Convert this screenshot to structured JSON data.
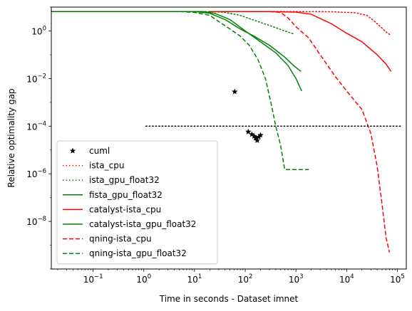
{
  "chart_data": {
    "type": "line",
    "title": "",
    "xlabel": "Time in seconds - Dataset imnet",
    "ylabel": "Relative optimality gap",
    "xscale": "log",
    "yscale": "log",
    "xlim": [
      0.015,
      150000
    ],
    "ylim": [
      1e-10,
      10
    ],
    "x_ticks": [
      {
        "value": 0.1,
        "base": "10",
        "exp": "−1"
      },
      {
        "value": 1,
        "base": "10",
        "exp": "0"
      },
      {
        "value": 10,
        "base": "10",
        "exp": "1"
      },
      {
        "value": 100,
        "base": "10",
        "exp": "2"
      },
      {
        "value": 1000,
        "base": "10",
        "exp": "3"
      },
      {
        "value": 10000,
        "base": "10",
        "exp": "4"
      },
      {
        "value": 100000,
        "base": "10",
        "exp": "5"
      }
    ],
    "y_ticks": [
      {
        "value": 1e-08,
        "base": "10",
        "exp": "−8"
      },
      {
        "value": 1e-06,
        "base": "10",
        "exp": "−6"
      },
      {
        "value": 0.0001,
        "base": "10",
        "exp": "−4"
      },
      {
        "value": 0.01,
        "base": "10",
        "exp": "−2"
      },
      {
        "value": 1,
        "base": "10",
        "exp": "0"
      }
    ],
    "legend_position": "lower-left",
    "grid": false,
    "series": [
      {
        "name": "cuml",
        "color": "#000000",
        "style": "marker-star",
        "points": [
          [
            62,
            0.0028
          ],
          [
            115,
            5.8e-05
          ],
          [
            135,
            4.5e-05
          ],
          [
            150,
            3.8e-05
          ],
          [
            160,
            3.2e-05
          ],
          [
            172,
            2.5e-05
          ],
          [
            185,
            3.5e-05
          ],
          [
            200,
            4.2e-05
          ]
        ]
      },
      {
        "name": "ista_cpu",
        "color": "#ff0000",
        "style": "dotted",
        "points": [
          [
            20,
            6.5
          ],
          [
            1000,
            6.5
          ],
          [
            5000,
            6.4
          ],
          [
            15000,
            5.8
          ],
          [
            25000,
            4.5
          ],
          [
            35000,
            2.6
          ],
          [
            45000,
            1.6
          ],
          [
            60000,
            0.9
          ],
          [
            75000,
            0.65
          ]
        ]
      },
      {
        "name": "ista_gpu_float32",
        "color": "#008000",
        "style": "dotted",
        "points": [
          [
            0.015,
            6.5
          ],
          [
            20,
            6.5
          ],
          [
            40,
            6.0
          ],
          [
            80,
            4.5
          ],
          [
            150,
            2.8
          ],
          [
            300,
            1.7
          ],
          [
            600,
            1.0
          ],
          [
            900,
            0.75
          ]
        ]
      },
      {
        "name": "fista_gpu_float32",
        "color": "#008000",
        "style": "solid",
        "points": [
          [
            0.015,
            6.5
          ],
          [
            15,
            6.5
          ],
          [
            25,
            5.5
          ],
          [
            50,
            3.0
          ],
          [
            100,
            1.0
          ],
          [
            200,
            0.35
          ],
          [
            400,
            0.12
          ],
          [
            700,
            0.035
          ],
          [
            1000,
            0.01
          ],
          [
            1300,
            0.003
          ]
        ]
      },
      {
        "name": "catalyst-ista_cpu",
        "color": "#ff0000",
        "style": "solid",
        "points": [
          [
            20,
            6.5
          ],
          [
            300,
            6.5
          ],
          [
            1000,
            6.2
          ],
          [
            2000,
            5.0
          ],
          [
            5000,
            2.0
          ],
          [
            10000,
            0.8
          ],
          [
            20000,
            0.35
          ],
          [
            40000,
            0.1
          ],
          [
            60000,
            0.04
          ],
          [
            75000,
            0.02
          ]
        ]
      },
      {
        "name": "catalyst-ista_gpu_float32",
        "color": "#008000",
        "style": "solid",
        "points": [
          [
            0.015,
            6.5
          ],
          [
            10,
            6.5
          ],
          [
            20,
            5.5
          ],
          [
            40,
            3.0
          ],
          [
            80,
            1.2
          ],
          [
            150,
            0.6
          ],
          [
            300,
            0.25
          ],
          [
            600,
            0.08
          ],
          [
            900,
            0.035
          ],
          [
            1250,
            0.02
          ]
        ]
      },
      {
        "name": "qning-ista_cpu",
        "color": "#ff0000",
        "style": "dashed",
        "points": [
          [
            300,
            6.5
          ],
          [
            500,
            6.0
          ],
          [
            700,
            3.5
          ],
          [
            1000,
            1.5
          ],
          [
            1800,
            0.5
          ],
          [
            3000,
            0.1
          ],
          [
            6000,
            0.012
          ],
          [
            10000,
            0.003
          ],
          [
            20000,
            0.0005
          ],
          [
            30000,
            5e-05
          ],
          [
            40000,
            2e-06
          ],
          [
            50000,
            5e-08
          ],
          [
            60000,
            2e-09
          ],
          [
            70000,
            5e-10
          ]
        ]
      },
      {
        "name": "qning-ista_gpu_float32",
        "color": "#008000",
        "style": "dashed",
        "points": [
          [
            0.015,
            6.5
          ],
          [
            5,
            6.5
          ],
          [
            10,
            6.0
          ],
          [
            20,
            4.5
          ],
          [
            30,
            2.5
          ],
          [
            50,
            1.2
          ],
          [
            80,
            0.6
          ],
          [
            120,
            0.25
          ],
          [
            180,
            0.06
          ],
          [
            250,
            0.01
          ],
          [
            320,
            0.001
          ],
          [
            400,
            0.0001
          ],
          [
            500,
            1.5e-05
          ],
          [
            600,
            1.5e-06
          ],
          [
            1000,
            1.5e-06
          ],
          [
            1800,
            1.5e-06
          ]
        ]
      },
      {
        "name": "",
        "color": "#000000",
        "style": "dotted-reference",
        "points": [
          [
            1.1,
            0.0001
          ],
          [
            120000,
            0.0001
          ]
        ]
      }
    ]
  }
}
